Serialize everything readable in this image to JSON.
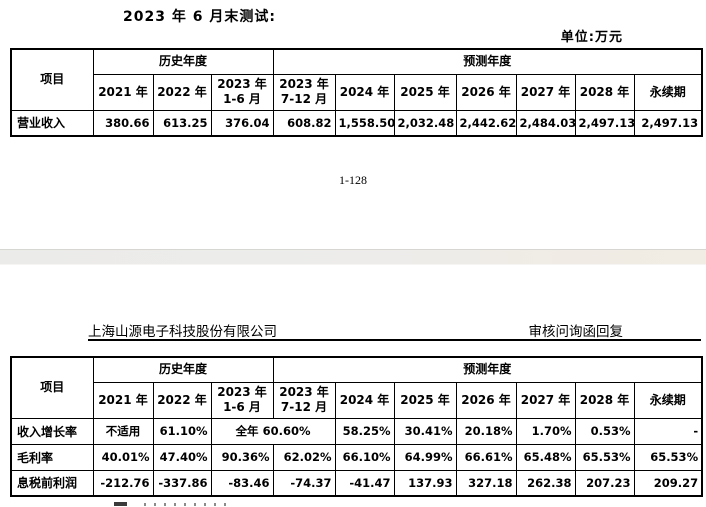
{
  "page1": {
    "heading": "2023 年 6 月末测试:",
    "unit_label": "单位:万元",
    "page_number": "1-128"
  },
  "page2": {
    "header_left": "上海山源电子科技股份有限公司",
    "header_right": "审核问询函回复"
  },
  "table_common": {
    "item_header": "项目",
    "groups": [
      {
        "label": "历史年度",
        "span": 3
      },
      {
        "label": "预测年度",
        "span": 7
      }
    ],
    "year_columns": [
      "2021 年",
      "2022 年",
      "2023 年\n1-6 月",
      "2023 年\n7-12 月",
      "2024 年",
      "2025 年",
      "2026 年",
      "2027 年",
      "2028 年",
      "永续期"
    ]
  },
  "table1": {
    "rows": [
      {
        "label": "营业收入",
        "cells": [
          {
            "text": "380.66"
          },
          {
            "text": "613.25"
          },
          {
            "text": "376.04"
          },
          {
            "text": "608.82"
          },
          {
            "text": "1,558.50"
          },
          {
            "text": "2,032.48"
          },
          {
            "text": "2,442.62"
          },
          {
            "text": "2,484.03"
          },
          {
            "text": "2,497.13"
          },
          {
            "text": "2,497.13"
          }
        ]
      }
    ]
  },
  "table2": {
    "rows": [
      {
        "label": "收入增长率",
        "cells": [
          {
            "text": "不适用",
            "align": "center"
          },
          {
            "text": "61.10%"
          },
          {
            "text": "全年 60.60%",
            "colspan": 2,
            "align": "center"
          },
          {
            "text": "58.25%"
          },
          {
            "text": "30.41%"
          },
          {
            "text": "20.18%"
          },
          {
            "text": "1.70%"
          },
          {
            "text": "0.53%"
          },
          {
            "text": "-"
          }
        ]
      },
      {
        "label": "毛利率",
        "cells": [
          {
            "text": "40.01%"
          },
          {
            "text": "47.40%"
          },
          {
            "text": "90.36%"
          },
          {
            "text": "62.02%"
          },
          {
            "text": "66.10%"
          },
          {
            "text": "64.99%"
          },
          {
            "text": "66.61%"
          },
          {
            "text": "65.48%"
          },
          {
            "text": "65.53%"
          },
          {
            "text": "65.53%"
          }
        ]
      },
      {
        "label": "息税前利润",
        "cells": [
          {
            "text": "-212.76"
          },
          {
            "text": "-337.86"
          },
          {
            "text": "-83.46"
          },
          {
            "text": "-74.37"
          },
          {
            "text": "-41.47"
          },
          {
            "text": "137.93"
          },
          {
            "text": "327.18"
          },
          {
            "text": "262.38"
          },
          {
            "text": "207.23"
          },
          {
            "text": "209.27"
          }
        ]
      }
    ]
  }
}
